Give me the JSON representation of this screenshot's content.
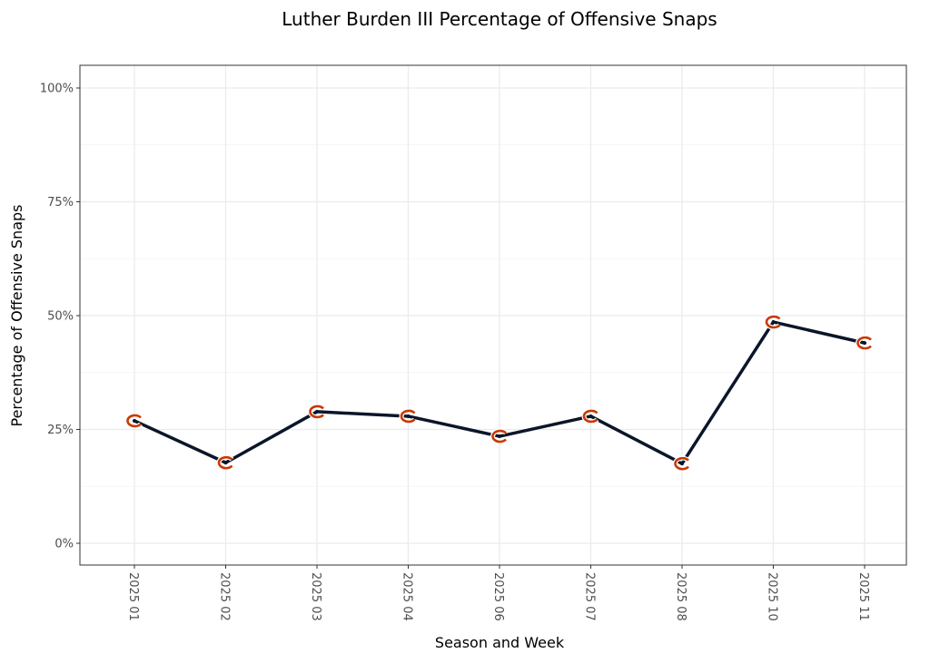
{
  "chart_data": {
    "type": "line",
    "title": "Luther Burden III Percentage of Offensive Snaps",
    "xlabel": "Season and Week",
    "ylabel": "Percentage of Offensive Snaps",
    "categories": [
      "2025 01",
      "2025 02",
      "2025 03",
      "2025 04",
      "2025 06",
      "2025 07",
      "2025 08",
      "2025 10",
      "2025 11"
    ],
    "values": [
      26.9,
      17.7,
      28.9,
      27.9,
      23.5,
      27.9,
      17.5,
      48.6,
      44.0
    ],
    "ylim": [
      -5,
      105
    ],
    "yticks": [
      0,
      25,
      50,
      75,
      100
    ],
    "ytick_labels": [
      "0%",
      "25%",
      "50%",
      "75%",
      "100%"
    ],
    "grid": true,
    "line_color": "#0B162A",
    "marker_color": "#C83803",
    "marker": "bears-c-logo"
  }
}
